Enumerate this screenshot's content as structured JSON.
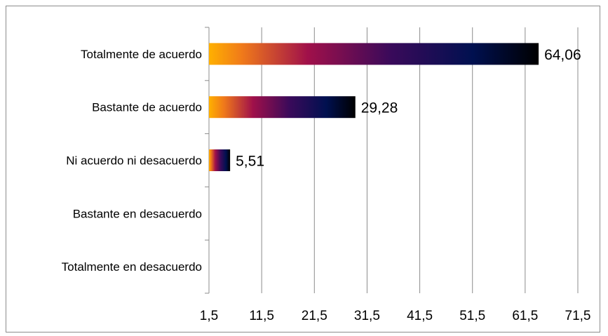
{
  "chart_data": {
    "type": "bar",
    "orientation": "horizontal",
    "categories": [
      "Totalmente de acuerdo",
      "Bastante de acuerdo",
      "Ni acuerdo ni desacuerdo",
      "Bastante en desacuerdo",
      "Totalmente en desacuerdo"
    ],
    "values": [
      64.06,
      29.28,
      5.51,
      null,
      null
    ],
    "data_labels": [
      "64,06",
      "29,28",
      "5,51",
      "",
      ""
    ],
    "xlim": [
      1.5,
      71.5
    ],
    "x_ticks": [
      1.5,
      11.5,
      21.5,
      31.5,
      41.5,
      51.5,
      61.5,
      71.5
    ],
    "x_tick_labels": [
      "1,5",
      "11,5",
      "21,5",
      "31,5",
      "41,5",
      "51,5",
      "61,5",
      "71,5"
    ],
    "grid": "vertical",
    "legend": "none",
    "bar_gradient": [
      "#ffb000",
      "#f07a1a",
      "#a0104a",
      "#3a0a5a",
      "#001050",
      "#000000"
    ],
    "colors": {
      "gridline": "#8c8c8c",
      "axis": "#8c8c8c",
      "frame": "#8c8c8c"
    }
  }
}
